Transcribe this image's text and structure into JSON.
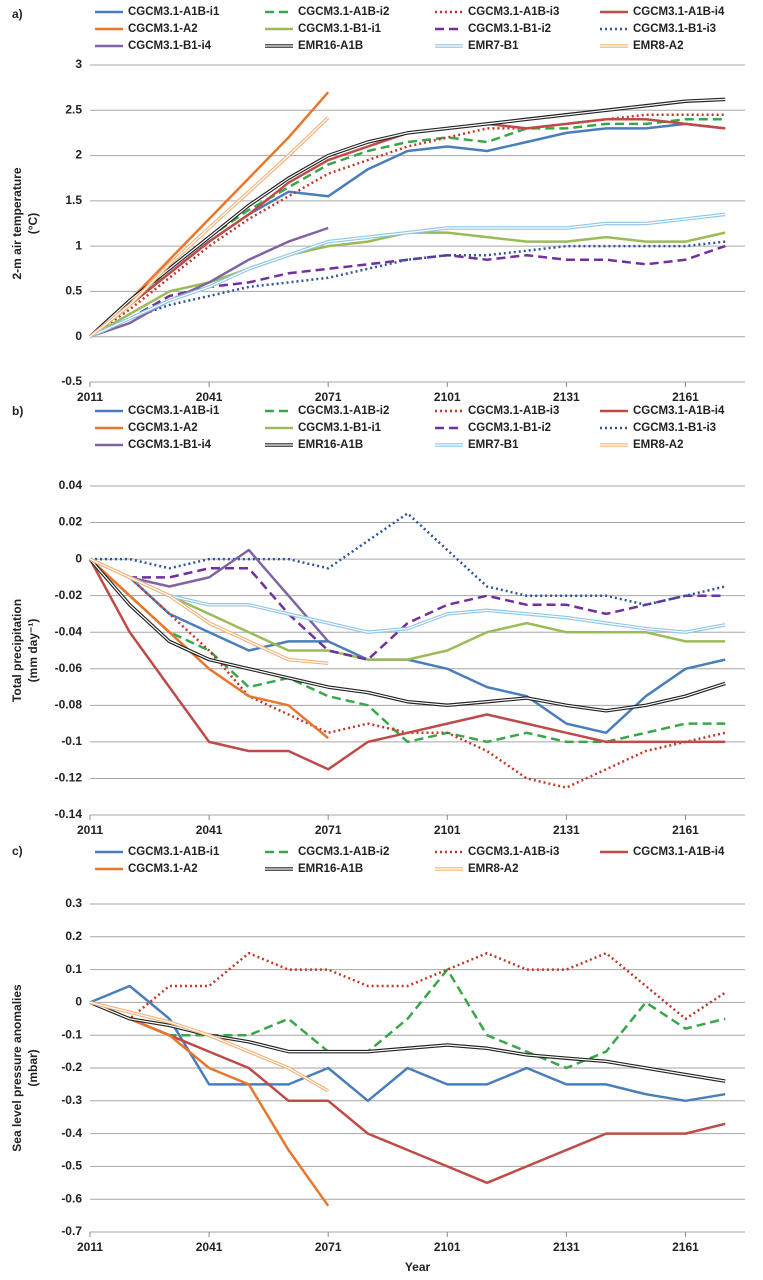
{
  "chart_data": [
    {
      "type": "line",
      "panel_label": "a)",
      "y_label": [
        "2-m air temperature",
        "(°C)"
      ],
      "x": [
        2011,
        2021,
        2031,
        2041,
        2051,
        2061,
        2071,
        2081,
        2091,
        2101,
        2111,
        2121,
        2131,
        2141,
        2151,
        2161,
        2171
      ],
      "xlim": [
        2011,
        2176
      ],
      "xticks": [
        2011,
        2041,
        2071,
        2101,
        2131,
        2161
      ],
      "ylim": [
        -0.5,
        3
      ],
      "yticks": [
        -0.5,
        0,
        0.5,
        1,
        1.5,
        2,
        2.5,
        3
      ],
      "grid": true,
      "series": [
        {
          "name": "CGCM3.1-A1B-i1",
          "color": "#4a7ebb",
          "style": "solid",
          "values": [
            0,
            0.35,
            0.7,
            1.05,
            1.35,
            1.6,
            1.55,
            1.85,
            2.05,
            2.1,
            2.05,
            2.15,
            2.25,
            2.3,
            2.3,
            2.35,
            2.3
          ]
        },
        {
          "name": "CGCM3.1-A1B-i2",
          "color": "#3aa64a",
          "style": "dashed",
          "values": [
            0,
            0.35,
            0.75,
            1.1,
            1.4,
            1.65,
            1.9,
            2.05,
            2.15,
            2.2,
            2.15,
            2.3,
            2.3,
            2.35,
            2.35,
            2.4,
            2.4
          ]
        },
        {
          "name": "CGCM3.1-A1B-i3",
          "color": "#c0392b",
          "style": "dotted",
          "values": [
            0,
            0.3,
            0.65,
            1.0,
            1.3,
            1.55,
            1.8,
            1.95,
            2.1,
            2.2,
            2.3,
            2.3,
            2.35,
            2.4,
            2.45,
            2.45,
            2.45
          ]
        },
        {
          "name": "CGCM3.1-A1B-i4",
          "color": "#be4b48",
          "style": "solid",
          "values": [
            0,
            0.35,
            0.7,
            1.05,
            1.35,
            1.7,
            1.95,
            2.1,
            2.25,
            2.3,
            2.35,
            2.3,
            2.35,
            2.4,
            2.4,
            2.35,
            2.3
          ]
        },
        {
          "name": "CGCM3.1-A2",
          "color": "#e8772e",
          "style": "solid",
          "values": [
            0,
            0.4,
            0.85,
            1.3,
            1.75,
            2.2,
            2.7,
            null,
            null,
            null,
            null,
            null,
            null,
            null,
            null,
            null,
            null
          ]
        },
        {
          "name": "CGCM3.1-B1-i1",
          "color": "#9bbb59",
          "style": "solid",
          "values": [
            0,
            0.25,
            0.5,
            0.6,
            0.75,
            0.9,
            1.0,
            1.05,
            1.15,
            1.15,
            1.1,
            1.05,
            1.05,
            1.1,
            1.05,
            1.05,
            1.15
          ]
        },
        {
          "name": "CGCM3.1-B1-i2",
          "color": "#7030a0",
          "style": "dashed",
          "values": [
            0,
            0.2,
            0.45,
            0.55,
            0.6,
            0.7,
            0.75,
            0.8,
            0.85,
            0.9,
            0.85,
            0.9,
            0.85,
            0.85,
            0.8,
            0.85,
            1.0
          ]
        },
        {
          "name": "CGCM3.1-B1-i3",
          "color": "#2e5597",
          "style": "dotted",
          "values": [
            0,
            0.2,
            0.35,
            0.45,
            0.55,
            0.6,
            0.65,
            0.75,
            0.85,
            0.9,
            0.9,
            0.95,
            1.0,
            1.0,
            1.0,
            1.0,
            1.05
          ]
        },
        {
          "name": "CGCM3.1-B1-i4",
          "color": "#8064a2",
          "style": "solid",
          "values": [
            0,
            0.15,
            0.4,
            0.6,
            0.85,
            1.05,
            1.2,
            null,
            null,
            null,
            null,
            null,
            null,
            null,
            null,
            null,
            null
          ]
        },
        {
          "name": "EMR16-A1B",
          "color": "#222222",
          "style": "double",
          "values": [
            0,
            0.4,
            0.75,
            1.1,
            1.45,
            1.75,
            2.0,
            2.15,
            2.25,
            2.3,
            2.35,
            2.4,
            2.45,
            2.5,
            2.55,
            2.6,
            2.62
          ]
        },
        {
          "name": "EMR7-B1",
          "color": "#8ec5e8",
          "style": "double",
          "values": [
            0,
            0.2,
            0.4,
            0.55,
            0.75,
            0.9,
            1.05,
            1.1,
            1.15,
            1.2,
            1.2,
            1.2,
            1.2,
            1.25,
            1.25,
            1.3,
            1.35
          ]
        },
        {
          "name": "EMR8-A2",
          "color": "#f2b27a",
          "style": "double",
          "values": [
            0,
            0.35,
            0.8,
            1.2,
            1.6,
            2.0,
            2.42,
            null,
            null,
            null,
            null,
            null,
            null,
            null,
            null,
            null,
            null
          ]
        }
      ]
    },
    {
      "type": "line",
      "panel_label": "b)",
      "y_label": [
        "Total precipitation",
        "(mm day⁻¹)"
      ],
      "x": [
        2011,
        2021,
        2031,
        2041,
        2051,
        2061,
        2071,
        2081,
        2091,
        2101,
        2111,
        2121,
        2131,
        2141,
        2151,
        2161,
        2171
      ],
      "xlim": [
        2011,
        2176
      ],
      "xticks": [
        2011,
        2041,
        2071,
        2101,
        2131,
        2161
      ],
      "ylim": [
        -0.14,
        0.04
      ],
      "yticks": [
        -0.14,
        -0.12,
        -0.1,
        -0.08,
        -0.06,
        -0.04,
        -0.02,
        0,
        0.02,
        0.04
      ],
      "grid": true,
      "series": [
        {
          "name": "CGCM3.1-A1B-i1",
          "color": "#4a7ebb",
          "style": "solid",
          "values": [
            0,
            -0.01,
            -0.03,
            -0.04,
            -0.05,
            -0.045,
            -0.045,
            -0.055,
            -0.055,
            -0.06,
            -0.07,
            -0.075,
            -0.09,
            -0.095,
            -0.075,
            -0.06,
            -0.055
          ]
        },
        {
          "name": "CGCM3.1-A1B-i2",
          "color": "#3aa64a",
          "style": "dashed",
          "values": [
            0,
            -0.02,
            -0.04,
            -0.05,
            -0.07,
            -0.065,
            -0.075,
            -0.08,
            -0.1,
            -0.095,
            -0.1,
            -0.095,
            -0.1,
            -0.1,
            -0.095,
            -0.09,
            -0.09
          ]
        },
        {
          "name": "CGCM3.1-A1B-i3",
          "color": "#c0392b",
          "style": "dotted",
          "values": [
            0,
            -0.01,
            -0.03,
            -0.05,
            -0.075,
            -0.085,
            -0.095,
            -0.09,
            -0.095,
            -0.095,
            -0.105,
            -0.12,
            -0.125,
            -0.115,
            -0.105,
            -0.1,
            -0.095
          ]
        },
        {
          "name": "CGCM3.1-A1B-i4",
          "color": "#be4b48",
          "style": "solid",
          "values": [
            0,
            -0.04,
            -0.07,
            -0.1,
            -0.105,
            -0.105,
            -0.115,
            -0.1,
            -0.095,
            -0.09,
            -0.085,
            -0.09,
            -0.095,
            -0.1,
            -0.1,
            -0.1,
            -0.1
          ]
        },
        {
          "name": "CGCM3.1-A2",
          "color": "#e8772e",
          "style": "solid",
          "values": [
            0,
            -0.02,
            -0.04,
            -0.06,
            -0.075,
            -0.08,
            -0.098,
            null,
            null,
            null,
            null,
            null,
            null,
            null,
            null,
            null,
            null
          ]
        },
        {
          "name": "CGCM3.1-B1-i1",
          "color": "#9bbb59",
          "style": "solid",
          "values": [
            0,
            -0.01,
            -0.02,
            -0.03,
            -0.04,
            -0.05,
            -0.05,
            -0.055,
            -0.055,
            -0.05,
            -0.04,
            -0.035,
            -0.04,
            -0.04,
            -0.04,
            -0.045,
            -0.045
          ]
        },
        {
          "name": "CGCM3.1-B1-i2",
          "color": "#7030a0",
          "style": "dashed",
          "values": [
            0,
            -0.01,
            -0.01,
            -0.005,
            -0.005,
            -0.03,
            -0.05,
            -0.055,
            -0.035,
            -0.025,
            -0.02,
            -0.025,
            -0.025,
            -0.03,
            -0.025,
            -0.02,
            -0.02
          ]
        },
        {
          "name": "CGCM3.1-B1-i3",
          "color": "#2e5597",
          "style": "dotted",
          "values": [
            0,
            0,
            -0.005,
            0,
            0,
            0,
            -0.005,
            0.01,
            0.025,
            0.005,
            -0.015,
            -0.02,
            -0.02,
            -0.02,
            -0.025,
            -0.02,
            -0.015
          ]
        },
        {
          "name": "CGCM3.1-B1-i4",
          "color": "#8064a2",
          "style": "solid",
          "values": [
            0,
            -0.01,
            -0.015,
            -0.01,
            0.005,
            -0.02,
            -0.045,
            null,
            null,
            null,
            null,
            null,
            null,
            null,
            null,
            null,
            null
          ]
        },
        {
          "name": "EMR16-A1B",
          "color": "#222222",
          "style": "double",
          "values": [
            0,
            -0.025,
            -0.045,
            -0.055,
            -0.06,
            -0.065,
            -0.07,
            -0.073,
            -0.078,
            -0.08,
            -0.078,
            -0.076,
            -0.08,
            -0.083,
            -0.08,
            -0.075,
            -0.068
          ]
        },
        {
          "name": "EMR7-B1",
          "color": "#8ec5e8",
          "style": "double",
          "values": [
            0,
            -0.01,
            -0.02,
            -0.025,
            -0.025,
            -0.03,
            -0.035,
            -0.04,
            -0.038,
            -0.03,
            -0.028,
            -0.03,
            -0.032,
            -0.035,
            -0.038,
            -0.04,
            -0.036
          ]
        },
        {
          "name": "EMR8-A2",
          "color": "#f2b27a",
          "style": "double",
          "values": [
            0,
            -0.01,
            -0.02,
            -0.035,
            -0.045,
            -0.055,
            -0.057,
            null,
            null,
            null,
            null,
            null,
            null,
            null,
            null,
            null,
            null
          ]
        }
      ]
    },
    {
      "type": "line",
      "panel_label": "c)",
      "y_label": [
        "Sea level pressure anomalies",
        "(mbar)"
      ],
      "x_label": "Year",
      "x": [
        2011,
        2021,
        2031,
        2041,
        2051,
        2061,
        2071,
        2081,
        2091,
        2101,
        2111,
        2121,
        2131,
        2141,
        2151,
        2161,
        2171
      ],
      "xlim": [
        2011,
        2176
      ],
      "xticks": [
        2011,
        2041,
        2071,
        2101,
        2131,
        2161
      ],
      "ylim": [
        -0.7,
        0.3
      ],
      "yticks": [
        -0.7,
        -0.6,
        -0.5,
        -0.4,
        -0.3,
        -0.2,
        -0.1,
        0,
        0.1,
        0.2,
        0.3
      ],
      "grid": true,
      "series": [
        {
          "name": "CGCM3.1-A1B-i1",
          "color": "#4a7ebb",
          "style": "solid",
          "values": [
            0,
            0.05,
            -0.05,
            -0.25,
            -0.25,
            -0.25,
            -0.2,
            -0.3,
            -0.2,
            -0.25,
            -0.25,
            -0.2,
            -0.25,
            -0.25,
            -0.28,
            -0.3,
            -0.28
          ]
        },
        {
          "name": "CGCM3.1-A1B-i2",
          "color": "#3aa64a",
          "style": "dashed",
          "values": [
            0,
            -0.05,
            -0.1,
            -0.1,
            -0.1,
            -0.05,
            -0.15,
            -0.15,
            -0.05,
            0.1,
            -0.1,
            -0.15,
            -0.2,
            -0.15,
            0.0,
            -0.08,
            -0.05
          ]
        },
        {
          "name": "CGCM3.1-A1B-i3",
          "color": "#c0392b",
          "style": "dotted",
          "values": [
            0,
            -0.05,
            0.05,
            0.05,
            0.15,
            0.1,
            0.1,
            0.05,
            0.05,
            0.1,
            0.15,
            0.1,
            0.1,
            0.15,
            0.05,
            -0.05,
            0.03
          ]
        },
        {
          "name": "CGCM3.1-A1B-i4",
          "color": "#be4b48",
          "style": "solid",
          "values": [
            0,
            -0.05,
            -0.1,
            -0.15,
            -0.2,
            -0.3,
            -0.3,
            -0.4,
            -0.45,
            -0.5,
            -0.55,
            -0.5,
            -0.45,
            -0.4,
            -0.4,
            -0.4,
            -0.37
          ]
        },
        {
          "name": "CGCM3.1-A2",
          "color": "#e8772e",
          "style": "solid",
          "values": [
            0,
            -0.05,
            -0.1,
            -0.2,
            -0.25,
            -0.45,
            -0.62,
            null,
            null,
            null,
            null,
            null,
            null,
            null,
            null,
            null,
            null
          ]
        },
        {
          "name": "EMR16-A1B",
          "color": "#222222",
          "style": "double",
          "values": [
            0,
            -0.05,
            -0.07,
            -0.1,
            -0.12,
            -0.15,
            -0.15,
            -0.15,
            -0.14,
            -0.13,
            -0.14,
            -0.16,
            -0.17,
            -0.18,
            -0.2,
            -0.22,
            -0.24
          ]
        },
        {
          "name": "EMR8-A2",
          "color": "#f2b27a",
          "style": "double",
          "values": [
            0,
            -0.03,
            -0.06,
            -0.1,
            -0.15,
            -0.2,
            -0.27,
            null,
            null,
            null,
            null,
            null,
            null,
            null,
            null,
            null,
            null
          ]
        }
      ]
    }
  ]
}
